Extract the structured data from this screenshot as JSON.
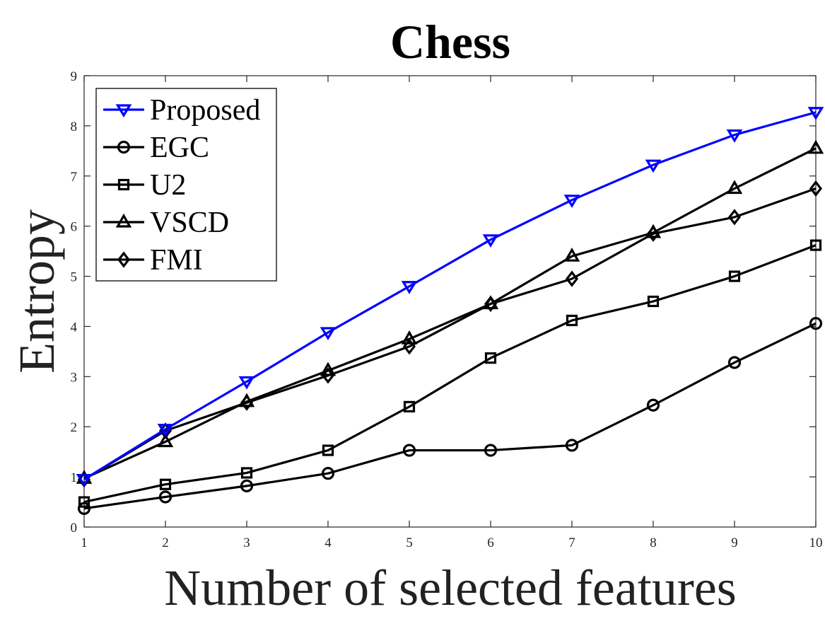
{
  "chart_data": {
    "type": "line",
    "title": "Chess",
    "xlabel": "Number of selected features",
    "ylabel": "Entropy",
    "x": [
      1,
      2,
      3,
      4,
      5,
      6,
      7,
      8,
      9,
      10
    ],
    "xlim": [
      1,
      10
    ],
    "ylim": [
      0,
      9
    ],
    "xticks": [
      1,
      2,
      3,
      4,
      5,
      6,
      7,
      8,
      9,
      10
    ],
    "yticks": [
      0,
      1,
      2,
      3,
      4,
      5,
      6,
      7,
      8,
      9
    ],
    "grid": false,
    "legend_position": "top-left",
    "series": [
      {
        "name": "Proposed",
        "marker": "triangle-down",
        "color": "#0000ff",
        "values": [
          0.95,
          1.95,
          2.9,
          3.88,
          4.8,
          5.73,
          6.52,
          7.22,
          7.82,
          8.27
        ]
      },
      {
        "name": "EGC",
        "marker": "circle",
        "color": "#000000",
        "values": [
          0.37,
          0.6,
          0.82,
          1.07,
          1.53,
          1.53,
          1.63,
          2.43,
          3.28,
          4.06
        ]
      },
      {
        "name": "U2",
        "marker": "square",
        "color": "#000000",
        "values": [
          0.5,
          0.85,
          1.08,
          1.53,
          2.4,
          3.37,
          4.12,
          4.5,
          5.0,
          5.62
        ]
      },
      {
        "name": "VSCD",
        "marker": "triangle-up",
        "color": "#000000",
        "values": [
          0.97,
          1.7,
          2.5,
          3.12,
          3.75,
          4.45,
          5.4,
          5.87,
          6.75,
          7.55
        ]
      },
      {
        "name": "FMI",
        "marker": "diamond",
        "color": "#000000",
        "values": [
          0.95,
          1.92,
          2.48,
          3.02,
          3.6,
          4.45,
          4.95,
          5.85,
          6.18,
          6.75
        ]
      }
    ]
  }
}
